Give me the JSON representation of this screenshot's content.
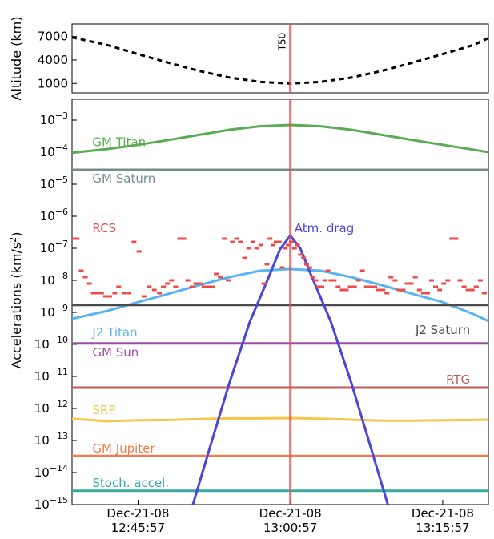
{
  "chart_data": [
    {
      "type": "line",
      "panel": "altitude",
      "ylabel": "Altitude (km)",
      "yticks": [
        1000,
        4000,
        7000
      ],
      "ylim": [
        -200,
        8600
      ],
      "xlim": [
        -21.5,
        19.5
      ],
      "marker_label": "T50",
      "marker_x": 0,
      "series": [
        {
          "style": "dashed",
          "color": "#000000",
          "x": [
            -21.5,
            -18,
            -15,
            -12,
            -9,
            -6,
            -3,
            0,
            3,
            6,
            9,
            12,
            15,
            18,
            19.5
          ],
          "values": [
            6900,
            5900,
            4750,
            3650,
            2600,
            1750,
            1200,
            990,
            1200,
            1750,
            2600,
            3650,
            4750,
            5900,
            6800
          ]
        }
      ]
    },
    {
      "type": "line",
      "panel": "accelerations",
      "ylabel_main": "Accelerations (km/s",
      "ylabel_sup": "2",
      "ylabel_tail": ")",
      "yscale": "log",
      "ylim_exp": [
        -15,
        -2.35
      ],
      "yticks_exp": [
        -15,
        -14,
        -13,
        -12,
        -11,
        -10,
        -9,
        -8,
        -7,
        -6,
        -5,
        -4,
        -3
      ],
      "tick_base": "10",
      "xlim": [
        -21.5,
        19.5
      ],
      "xticks": [
        {
          "x": -15,
          "line1": "Dec-21-08",
          "line2": "12:45:57"
        },
        {
          "x": 0,
          "line1": "Dec-21-08",
          "line2": "13:00:57"
        },
        {
          "x": 15,
          "line1": "Dec-21-08",
          "line2": "13:15:57"
        }
      ],
      "marker_x": 0,
      "series": [
        {
          "name": "GM Titan",
          "color": "#5aab53",
          "x": [
            -21.5,
            -18,
            -15,
            -12,
            -9,
            -6,
            -3,
            0,
            3,
            6,
            9,
            12,
            15,
            18,
            19.5
          ],
          "log_values": [
            -4.02,
            -3.9,
            -3.77,
            -3.62,
            -3.46,
            -3.3,
            -3.19,
            -3.15,
            -3.19,
            -3.3,
            -3.46,
            -3.62,
            -3.77,
            -3.92,
            -4.0
          ]
        },
        {
          "name": "GM Saturn",
          "color": "#748d8a",
          "x": [
            -21.5,
            19.5
          ],
          "log_values": [
            -4.55,
            -4.55
          ]
        },
        {
          "name": "J2 Titan",
          "color": "#5ab4ee",
          "x": [
            -21.5,
            -18,
            -15,
            -12,
            -9,
            -6,
            -3,
            0,
            3,
            6,
            9,
            12,
            15,
            18,
            19.5
          ],
          "log_values": [
            -9.2,
            -8.95,
            -8.68,
            -8.42,
            -8.15,
            -7.9,
            -7.7,
            -7.65,
            -7.7,
            -7.9,
            -8.15,
            -8.42,
            -8.68,
            -9.05,
            -9.27
          ]
        },
        {
          "name": "J2 Saturn",
          "color": "#4a4a4a",
          "x": [
            -21.5,
            19.5
          ],
          "log_values": [
            -8.77,
            -8.77
          ]
        },
        {
          "name": "GM Sun",
          "color": "#9a4fa4",
          "x": [
            -21.5,
            19.5
          ],
          "log_values": [
            -9.97,
            -9.97
          ]
        },
        {
          "name": "RTG",
          "color": "#c85757",
          "x": [
            -21.5,
            19.5
          ],
          "log_values": [
            -11.35,
            -11.35
          ]
        },
        {
          "name": "SRP",
          "color": "#f6c64f",
          "x": [
            -21.5,
            -18,
            -15,
            -12,
            -9,
            -6,
            -3,
            0,
            3,
            6,
            9,
            12,
            15,
            18,
            19.5
          ],
          "log_values": [
            -12.32,
            -12.4,
            -12.37,
            -12.36,
            -12.33,
            -12.31,
            -12.31,
            -12.3,
            -12.32,
            -12.35,
            -12.38,
            -12.38,
            -12.37,
            -12.36,
            -12.35
          ]
        },
        {
          "name": "GM Jupiter",
          "color": "#ef7d4d",
          "x": [
            -21.5,
            19.5
          ],
          "log_values": [
            -13.48,
            -13.48
          ]
        },
        {
          "name": "Stoch. accel.",
          "color": "#3aa9a2",
          "x": [
            -21.5,
            19.5
          ],
          "log_values": [
            -14.57,
            -14.57
          ]
        },
        {
          "name": "Atm. drag",
          "color": "#4a45db",
          "x": [
            -9.6,
            -8,
            -6,
            -4,
            -2,
            -1,
            0,
            1,
            2,
            4,
            6,
            8,
            9.6
          ],
          "log_values": [
            -15.0,
            -13.3,
            -11.2,
            -9.3,
            -7.8,
            -7.02,
            -6.6,
            -7.02,
            -7.8,
            -9.3,
            -11.2,
            -13.3,
            -15.0
          ]
        },
        {
          "name": "RCS",
          "color": "#ee4a4a",
          "kind": "scatter",
          "x": [
            -21.3,
            -21.0,
            -20.6,
            -20.2,
            -19.8,
            -19.4,
            -19.0,
            -18.6,
            -18.2,
            -17.8,
            -17.3,
            -16.9,
            -16.4,
            -15.9,
            -15.4,
            -14.9,
            -14.4,
            -13.9,
            -13.4,
            -12.9,
            -12.5,
            -12.1,
            -11.7,
            -11.3,
            -10.9,
            -10.5,
            -10.1,
            -9.7,
            -9.3,
            -8.9,
            -8.5,
            -8.1,
            -7.7,
            -7.3,
            -6.9,
            -6.5,
            -6.1,
            -5.7,
            -5.3,
            -4.9,
            -4.5,
            -4.1,
            -3.7,
            -3.3,
            -2.9,
            -2.6,
            -2.3,
            -2.0,
            -1.7,
            -1.4,
            -1.1,
            -0.8,
            -0.5,
            -0.2,
            0.1,
            0.4,
            0.7,
            1.0,
            1.3,
            1.6,
            1.9,
            2.2,
            2.5,
            2.8,
            3.1,
            3.4,
            3.7,
            4.0,
            4.3,
            4.7,
            5.1,
            5.5,
            5.9,
            6.3,
            6.7,
            7.1,
            7.5,
            7.9,
            8.3,
            8.7,
            9.1,
            9.5,
            9.9,
            10.3,
            10.7,
            11.1,
            11.5,
            11.9,
            12.3,
            12.7,
            13.1,
            13.5,
            13.9,
            14.3,
            14.7,
            15.1,
            15.5,
            15.9,
            16.3,
            16.7,
            17.1,
            17.5,
            17.9,
            18.3,
            18.7,
            19.1
          ],
          "log_values": [
            -6.7,
            -6.7,
            -7.7,
            -7.9,
            -8.1,
            -8.4,
            -8.4,
            -8.4,
            -8.5,
            -8.5,
            -8.4,
            -8.2,
            -8.4,
            -8.4,
            -6.8,
            -7.1,
            -8.5,
            -8.2,
            -8.3,
            -8.4,
            -8.2,
            -8.1,
            -8.0,
            -8.2,
            -6.7,
            -6.7,
            -8.0,
            -8.2,
            -8.1,
            -8.1,
            -8.2,
            -8.2,
            -8.2,
            -7.8,
            -7.9,
            -6.7,
            -8.0,
            -6.8,
            -6.7,
            -6.8,
            -7.3,
            -7.0,
            -6.8,
            -7.0,
            -6.9,
            -8.1,
            -7.5,
            -6.7,
            -6.9,
            -6.8,
            -6.8,
            -7.6,
            -7.0,
            -6.9,
            -6.8,
            -7.0,
            -6.9,
            -7.2,
            -7.3,
            -7.5,
            -7.6,
            -7.9,
            -8.0,
            -8.2,
            -8.2,
            -8.0,
            -7.7,
            -8.0,
            -8.0,
            -8.2,
            -8.3,
            -8.3,
            -8.2,
            -8.2,
            -8.0,
            -7.7,
            -8.2,
            -8.2,
            -8.2,
            -8.3,
            -8.3,
            -8.4,
            -7.9,
            -8.0,
            -8.3,
            -8.3,
            -8.1,
            -8.1,
            -7.9,
            -8.3,
            -8.4,
            -8.4,
            -8.0,
            -8.2,
            -8.3,
            -8.1,
            -8.0,
            -6.7,
            -6.7,
            -8.0,
            -8.2,
            -8.3,
            -8.3,
            -8.2,
            -8.0,
            -8.4
          ]
        }
      ],
      "labels": [
        {
          "text": "GM Titan",
          "color": "#5aab53",
          "x": -19.5,
          "log_y": -3.69,
          "anchor": "start"
        },
        {
          "text": "GM Saturn",
          "color": "#748d8a",
          "x": -19.5,
          "log_y": -4.82,
          "anchor": "start"
        },
        {
          "text": "RCS",
          "color": "#ee4a4a",
          "x": -19.5,
          "log_y": -6.37,
          "anchor": "start"
        },
        {
          "text": "Atm. drag",
          "color": "#4a45db",
          "x": 0.4,
          "log_y": -6.37,
          "anchor": "start"
        },
        {
          "text": "J2 Titan",
          "color": "#5ab4ee",
          "x": -19.5,
          "log_y": -9.63,
          "anchor": "start"
        },
        {
          "text": "J2 Saturn",
          "color": "#4a4a4a",
          "x": 17.7,
          "log_y": -9.55,
          "anchor": "end"
        },
        {
          "text": "GM Sun",
          "color": "#9a4fa4",
          "x": -19.5,
          "log_y": -10.25,
          "anchor": "start"
        },
        {
          "text": "RTG",
          "color": "#c85757",
          "x": 17.7,
          "log_y": -11.1,
          "anchor": "end"
        },
        {
          "text": "SRP",
          "color": "#f6c64f",
          "x": -19.5,
          "log_y": -12.05,
          "anchor": "start"
        },
        {
          "text": "GM Jupiter",
          "color": "#ef7d4d",
          "x": -19.5,
          "log_y": -13.25,
          "anchor": "start"
        },
        {
          "text": "Stoch. accel.",
          "color": "#3aa9a2",
          "x": -19.5,
          "log_y": -14.32,
          "anchor": "start"
        }
      ]
    }
  ]
}
